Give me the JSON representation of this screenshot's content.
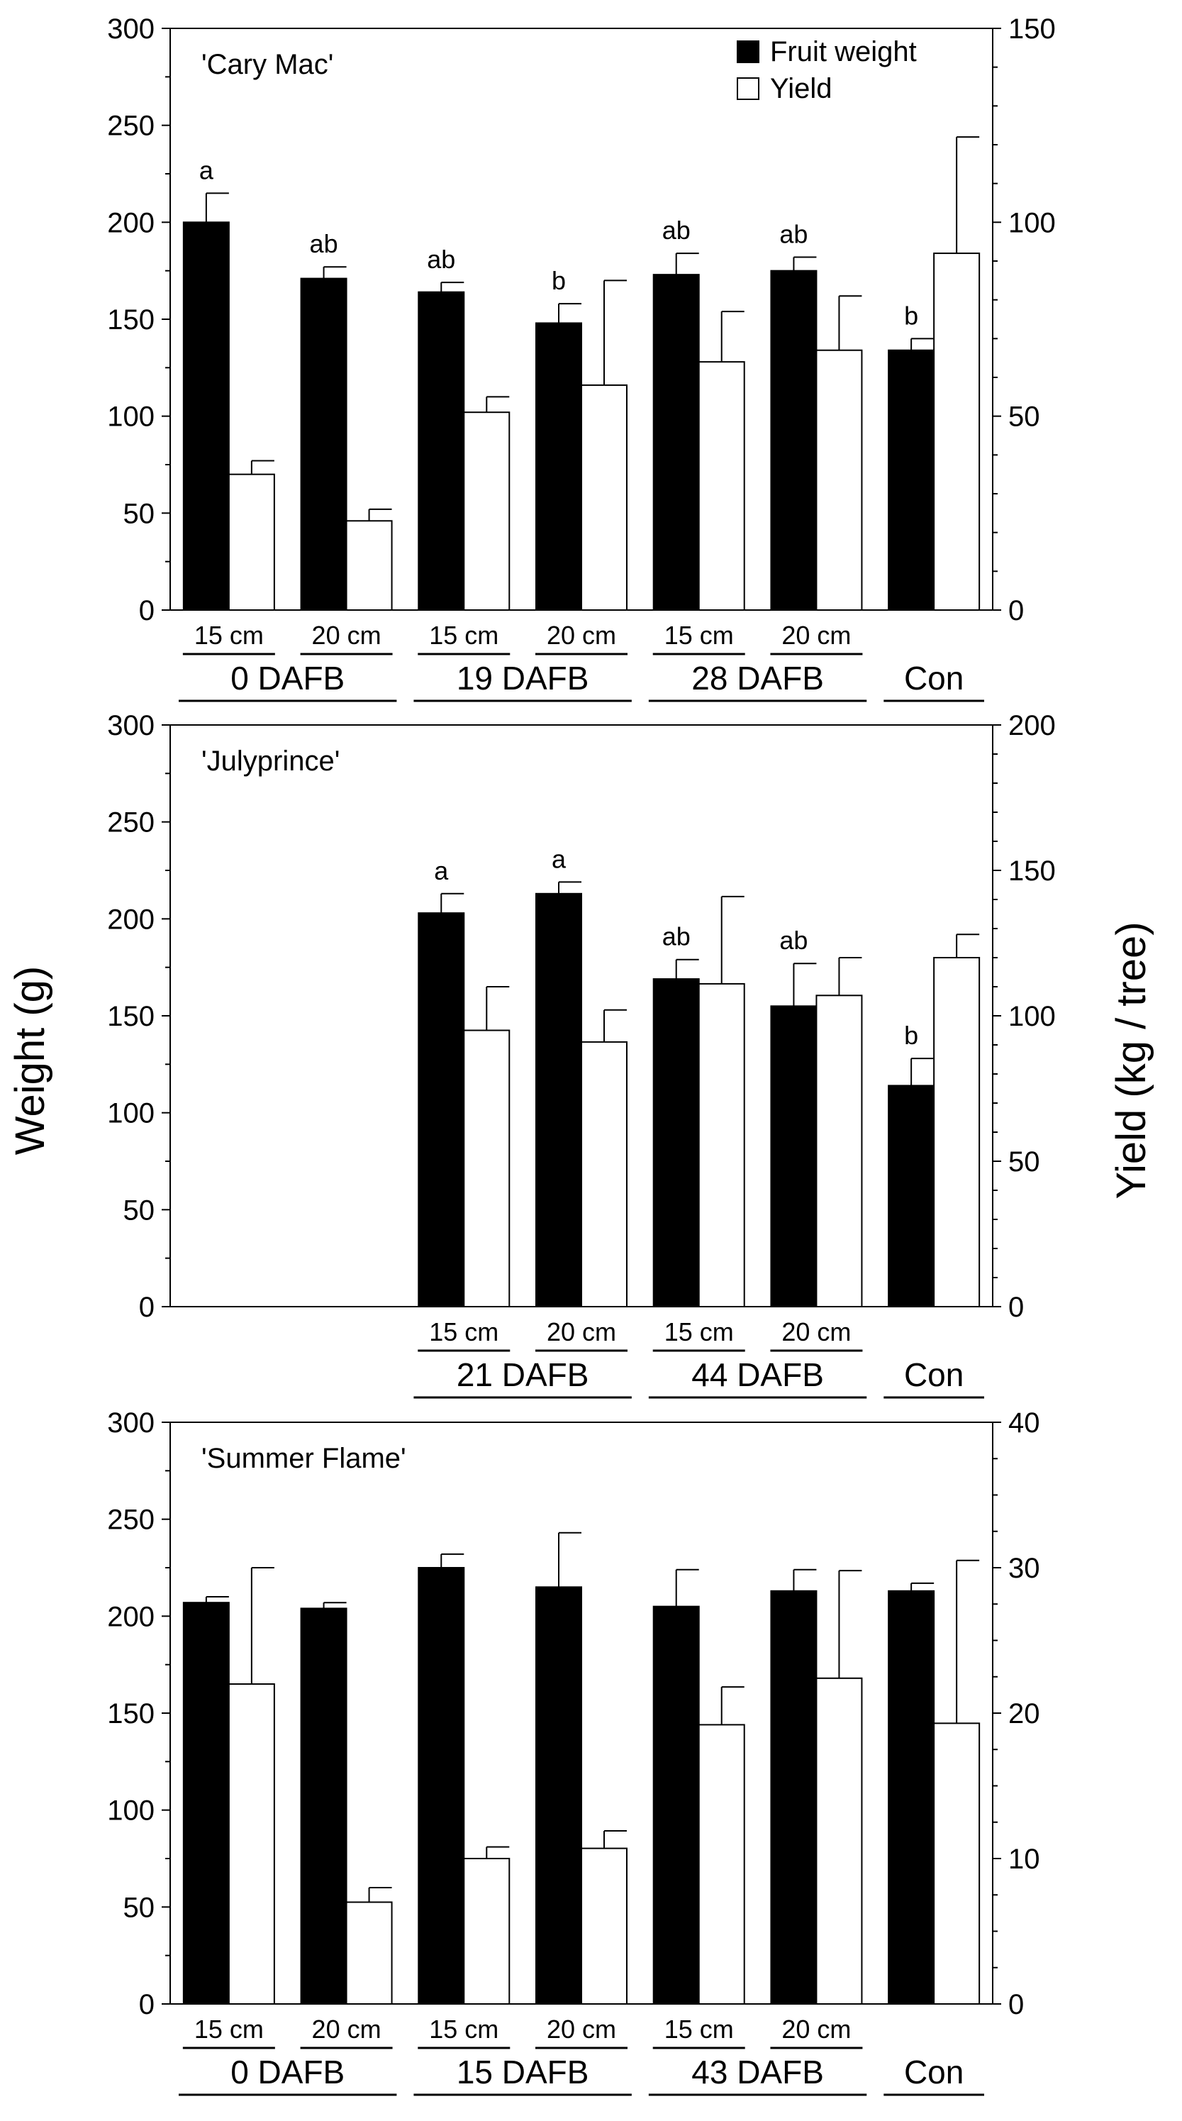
{
  "figure": {
    "left_axis_label": "Weight (g)",
    "right_axis_label": "Yield (kg / tree)"
  },
  "legend": {
    "fruit_weight": "Fruit weight",
    "yield": "Yield"
  },
  "colors": {
    "fruit_weight_fill": "#000000",
    "yield_fill": "#ffffff",
    "axis": "#000000"
  },
  "chart_data": [
    {
      "type": "bar",
      "title": "'Cary Mac'",
      "ylabel": "Weight (g)",
      "y2label": "Yield (kg / tree)",
      "ylim": [
        0,
        300
      ],
      "y2lim": [
        0,
        150
      ],
      "yticks": [
        0,
        50,
        100,
        150,
        200,
        250,
        300
      ],
      "y2ticks": [
        0,
        50,
        100,
        150
      ],
      "legend": [
        "Fruit weight",
        "Yield"
      ],
      "categories": [
        "15 cm",
        "20 cm",
        "15 cm",
        "20 cm",
        "15 cm",
        "20 cm",
        ""
      ],
      "groups": [
        "0 DAFB",
        "19 DAFB",
        "28 DAFB",
        "Con"
      ],
      "group_spans": [
        [
          0,
          1
        ],
        [
          2,
          3
        ],
        [
          4,
          5
        ],
        [
          6,
          6
        ]
      ],
      "series": [
        {
          "name": "Fruit weight",
          "axis": "left",
          "values": [
            200,
            171,
            164,
            148,
            173,
            175,
            134
          ],
          "errors": [
            15,
            6,
            5,
            10,
            11,
            7,
            6
          ]
        },
        {
          "name": "Yield",
          "axis": "right",
          "values": [
            35,
            23,
            51,
            58,
            64,
            67,
            92
          ],
          "errors": [
            3.5,
            3,
            4,
            27,
            13,
            14,
            30
          ]
        }
      ],
      "annotations": [
        "a",
        "ab",
        "ab",
        "b",
        "ab",
        "ab",
        "b"
      ]
    },
    {
      "type": "bar",
      "title": "'Julyprince'",
      "ylabel": "Weight (g)",
      "y2label": "Yield (kg / tree)",
      "ylim": [
        0,
        300
      ],
      "y2lim": [
        0,
        200
      ],
      "yticks": [
        0,
        50,
        100,
        150,
        200,
        250,
        300
      ],
      "y2ticks": [
        0,
        50,
        100,
        150,
        200
      ],
      "categories": [
        "",
        "",
        "15 cm",
        "20 cm",
        "15 cm",
        "20 cm",
        ""
      ],
      "groups": [
        "21 DAFB",
        "44 DAFB",
        "Con"
      ],
      "group_spans": [
        [
          2,
          3
        ],
        [
          4,
          5
        ],
        [
          6,
          6
        ]
      ],
      "series": [
        {
          "name": "Fruit weight",
          "axis": "left",
          "values": [
            null,
            null,
            203,
            213,
            169,
            155,
            114
          ],
          "errors": [
            null,
            null,
            10,
            6,
            10,
            22,
            14
          ]
        },
        {
          "name": "Yield",
          "axis": "right",
          "values": [
            null,
            null,
            95,
            91,
            111,
            107,
            120
          ],
          "errors": [
            null,
            null,
            15,
            11,
            30,
            13,
            8
          ]
        }
      ],
      "annotations": [
        "",
        "",
        "a",
        "a",
        "ab",
        "ab",
        "b"
      ]
    },
    {
      "type": "bar",
      "title": "'Summer Flame'",
      "ylabel": "Weight (g)",
      "y2label": "Yield (kg / tree)",
      "ylim": [
        0,
        300
      ],
      "y2lim": [
        0,
        40
      ],
      "yticks": [
        0,
        50,
        100,
        150,
        200,
        250,
        300
      ],
      "y2ticks": [
        0,
        10,
        20,
        30,
        40
      ],
      "categories": [
        "15 cm",
        "20 cm",
        "15 cm",
        "20 cm",
        "15 cm",
        "20 cm",
        ""
      ],
      "groups": [
        "0 DAFB",
        "15 DAFB",
        "43 DAFB",
        "Con"
      ],
      "group_spans": [
        [
          0,
          1
        ],
        [
          2,
          3
        ],
        [
          4,
          5
        ],
        [
          6,
          6
        ]
      ],
      "series": [
        {
          "name": "Fruit weight",
          "axis": "left",
          "values": [
            207,
            204,
            225,
            215,
            205,
            213,
            213
          ],
          "errors": [
            3,
            3,
            7,
            28,
            19,
            11,
            4
          ]
        },
        {
          "name": "Yield",
          "axis": "right",
          "values": [
            22,
            7,
            10,
            10.7,
            19.2,
            22.4,
            19.3
          ],
          "errors": [
            8,
            1,
            0.8,
            1.2,
            2.6,
            7.4,
            11.2
          ]
        }
      ],
      "annotations": [
        "",
        "",
        "",
        "",
        "",
        "",
        ""
      ]
    }
  ]
}
